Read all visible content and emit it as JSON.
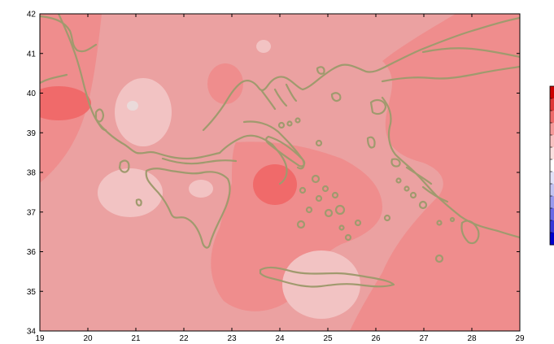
{
  "map": {
    "x_ticks": [
      "19",
      "20",
      "21",
      "22",
      "23",
      "24",
      "25",
      "26",
      "27",
      "28",
      "29"
    ],
    "y_ticks": [
      "34",
      "35",
      "36",
      "37",
      "38",
      "39",
      "40",
      "41",
      "42"
    ],
    "coastline_color": "#a09a6e",
    "colors": {
      "level_1": "#eba1a1",
      "level_2": "#ef8d8d",
      "level_3": "#f06a6a",
      "level_0": "#f2c3c3",
      "level_min": "#eadada"
    }
  },
  "colorbar": {
    "colors": [
      "#cc0000",
      "#e03838",
      "#ee6a6a",
      "#f59a9a",
      "#f9c2c2",
      "#fbe0e0",
      "#ffffff",
      "#e2e2f8",
      "#c4c4f2",
      "#9a9aee",
      "#6a6ae6",
      "#3838d8",
      "#0000cc"
    ]
  }
}
